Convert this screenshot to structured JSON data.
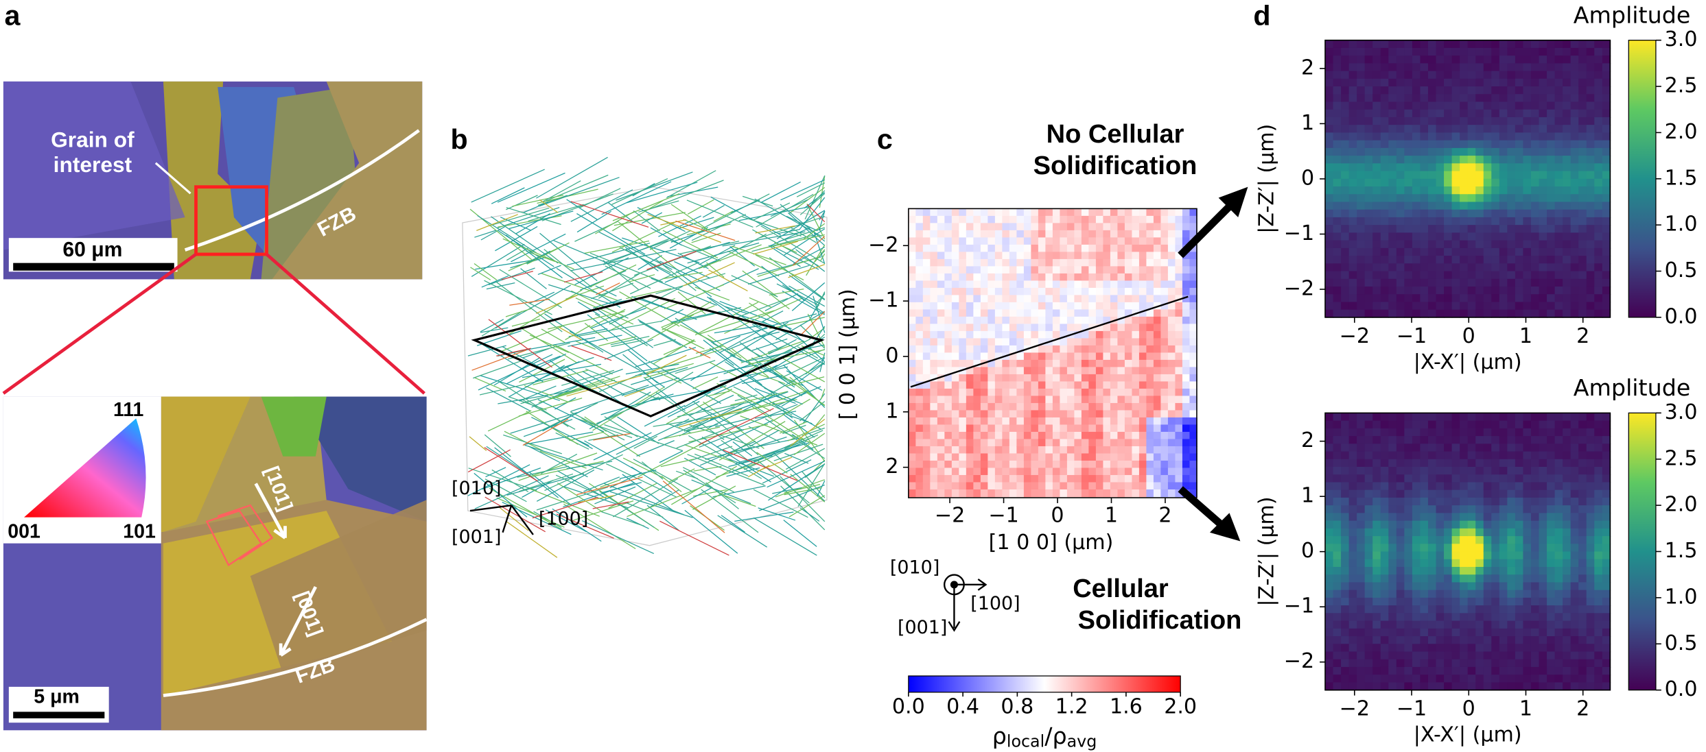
{
  "panels": {
    "a": {
      "label": "a",
      "annotation": [
        "Grain of",
        "interest"
      ],
      "scalebar_top": "60 μm",
      "fzb_top": "FZB",
      "ipf": {
        "top": "111",
        "left": "001",
        "right": "101"
      },
      "directions": [
        "[101]",
        "[001]"
      ],
      "fzb_bottom": "FZB",
      "scalebar_bottom": "5 μm"
    },
    "b": {
      "label": "b",
      "axes": [
        "[010]",
        "[001]",
        "[100]"
      ]
    },
    "c": {
      "label": "c",
      "xlabel": "[1 0 0] (μm)",
      "ylabel": "[ 0 0 1] (μm)",
      "xticks": [
        "−2",
        "−1",
        "0",
        "1",
        "2"
      ],
      "yticks": [
        "−2",
        "−1",
        "0",
        "1",
        "2"
      ],
      "axes": [
        "[010]",
        "[100]",
        "[001]"
      ],
      "colorbar_ticks": [
        "0.0",
        "0.4",
        "0.8",
        "1.2",
        "1.6",
        "2.0"
      ],
      "colorbar_label": [
        "ρ",
        "local",
        "/ρ",
        "avg"
      ],
      "note_top": [
        "No Cellular",
        "Solidification"
      ],
      "note_bottom": [
        "Cellular",
        "Solidification"
      ]
    },
    "d": {
      "label": "d",
      "plots": [
        {
          "title": "Amplitude",
          "xlabel": "|X-X′| (μm)",
          "ylabel": "|Z-Z′| (μm)",
          "xticks": [
            "−2",
            "−1",
            "0",
            "1",
            "2"
          ],
          "yticks": [
            "2",
            "1",
            "0",
            "−1",
            "−2"
          ],
          "colorbar_ticks": [
            "3.0",
            "2.5",
            "2.0",
            "1.5",
            "1.0",
            "0.5",
            "0.0"
          ]
        },
        {
          "title": "Amplitude",
          "xlabel": "|X-X′| (μm)",
          "ylabel": "|Z-Z′| (μm)",
          "xticks": [
            "−2",
            "−1",
            "0",
            "1",
            "2"
          ],
          "yticks": [
            "2",
            "1",
            "0",
            "−1",
            "−2"
          ],
          "colorbar_ticks": [
            "3.0",
            "2.5",
            "2.0",
            "1.5",
            "1.0",
            "0.5",
            "0.0"
          ]
        }
      ]
    }
  }
}
